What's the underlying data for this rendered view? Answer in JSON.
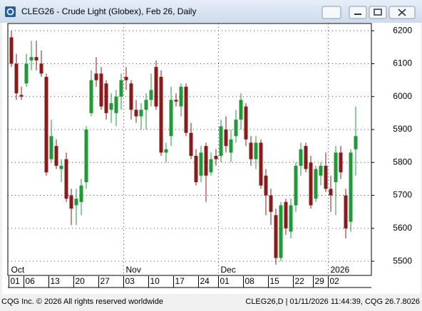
{
  "chart_data": {
    "type": "candlestick",
    "title": "CLEG26 - Crude Light (Globex), Feb 26, Daily",
    "categories": [
      "01",
      null,
      null,
      "06",
      null,
      null,
      null,
      null,
      "13",
      null,
      null,
      null,
      null,
      "20",
      null,
      null,
      null,
      null,
      "27",
      null,
      null,
      null,
      null,
      "03",
      null,
      null,
      null,
      null,
      "10",
      null,
      null,
      null,
      null,
      "17",
      null,
      null,
      null,
      null,
      "24",
      null,
      null,
      null,
      "01",
      null,
      null,
      null,
      null,
      "08",
      null,
      null,
      null,
      null,
      "15",
      null,
      null,
      null,
      null,
      "22",
      null,
      null,
      null,
      "29",
      null,
      null,
      "02",
      null,
      null,
      null,
      null,
      null
    ],
    "months": [
      "Oct",
      "Nov",
      "Dec",
      "2026"
    ],
    "open": [
      6180,
      6100,
      6005,
      6040,
      6110,
      6120,
      6100,
      6060,
      5810,
      5850,
      5780,
      5810,
      5700,
      5670,
      5680,
      5740,
      5950,
      6070,
      6070,
      6040,
      5960,
      5950,
      6000,
      6060,
      6040,
      5960,
      5940,
      5960,
      5990,
      6090,
      6060,
      5830,
      5880,
      5990,
      5970,
      6030,
      5890,
      5820,
      5760,
      5850,
      5770,
      5820,
      5820,
      5900,
      5830,
      5880,
      5930,
      5970,
      5860,
      5810,
      5860,
      5760,
      5700,
      5640,
      5510,
      5680,
      5590,
      5670,
      5790,
      5850,
      5800,
      5690,
      5760,
      5790,
      5720,
      5740,
      5830,
      5700,
      5620,
      5840
    ],
    "high": [
      6200,
      6130,
      6030,
      6130,
      6170,
      6170,
      6140,
      6070,
      5930,
      5870,
      5810,
      5830,
      5720,
      5720,
      5750,
      5910,
      6080,
      6120,
      6090,
      6050,
      6010,
      6020,
      6070,
      6090,
      6050,
      5990,
      5980,
      6010,
      6070,
      6110,
      6080,
      5860,
      6030,
      6010,
      6040,
      6040,
      5920,
      5840,
      5850,
      5860,
      5830,
      5840,
      5930,
      5940,
      5900,
      5960,
      6010,
      5980,
      5880,
      5880,
      5870,
      5780,
      5720,
      5660,
      5680,
      5690,
      5690,
      5800,
      5860,
      5860,
      5820,
      5790,
      5800,
      5830,
      5760,
      5850,
      5850,
      5720,
      5840,
      5970
    ],
    "low": [
      6090,
      5990,
      5990,
      6030,
      6080,
      6080,
      6060,
      5760,
      5800,
      5780,
      5740,
      5680,
      5610,
      5610,
      5640,
      5720,
      5940,
      6030,
      5960,
      5930,
      5920,
      5910,
      5960,
      6020,
      5930,
      5920,
      5900,
      5900,
      5970,
      5960,
      5820,
      5800,
      5850,
      5970,
      5940,
      5880,
      5810,
      5730,
      5740,
      5680,
      5760,
      5790,
      5800,
      5830,
      5800,
      5860,
      5900,
      5850,
      5790,
      5780,
      5720,
      5640,
      5610,
      5490,
      5500,
      5580,
      5570,
      5650,
      5760,
      5770,
      5660,
      5680,
      5730,
      5710,
      5650,
      5640,
      5750,
      5570,
      5590,
      5760
    ],
    "close": [
      6100,
      6010,
      6000,
      6100,
      6120,
      6110,
      6070,
      5770,
      5880,
      5790,
      5790,
      5690,
      5660,
      5690,
      5730,
      5900,
      6050,
      6050,
      5970,
      5950,
      5980,
      6000,
      6050,
      6050,
      5960,
      5940,
      5960,
      5990,
      6020,
      5970,
      5830,
      5840,
      5990,
      5985,
      6030,
      5890,
      5820,
      5740,
      5830,
      5760,
      5810,
      5810,
      5910,
      5850,
      5870,
      5930,
      5990,
      5870,
      5810,
      5860,
      5730,
      5700,
      5650,
      5510,
      5670,
      5600,
      5670,
      5790,
      5840,
      5780,
      5670,
      5780,
      5790,
      5720,
      5700,
      5830,
      5770,
      5600,
      5830,
      5880
    ],
    "up_color": "#1e9b37",
    "down_color": "#8b1a1a",
    "ylim": [
      5457,
      6222
    ],
    "yticks": [
      5500,
      5600,
      5700,
      5800,
      5900,
      6000,
      6100,
      6200
    ],
    "grid": true
  },
  "footer": {
    "left": "CQG Inc. © 2026 All rights reserved worldwide",
    "right": "CLEG26,D | 01/11/2026 11:44:39, CQG 26.7.8026"
  }
}
